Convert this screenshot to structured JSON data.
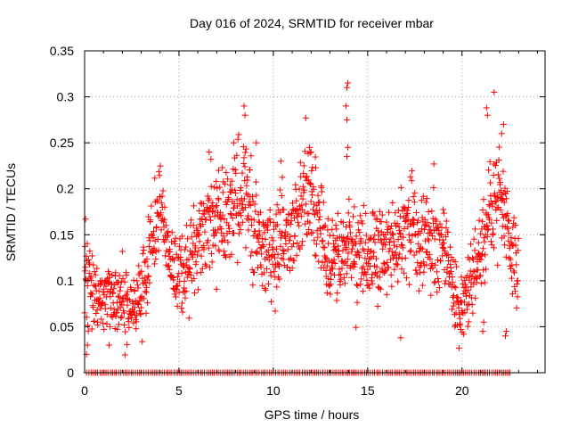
{
  "chart_data": {
    "type": "scatter",
    "title": "Day 016 of 2024, SRMTID for receiver mbar",
    "xlabel": "GPS time / hours",
    "ylabel": "SRMTID / TECUs",
    "xlim": [
      0,
      24.4
    ],
    "ylim": [
      0,
      0.35
    ],
    "xticks": [
      0,
      5,
      10,
      15,
      20
    ],
    "xtick_labels": [
      "0",
      "5",
      "10",
      "15",
      "20"
    ],
    "yticks": [
      0,
      0.05,
      0.1,
      0.15,
      0.2,
      0.25,
      0.3,
      0.35
    ],
    "ytick_labels": [
      "0",
      "0.05",
      "0.1",
      "0.15",
      "0.2",
      "0.25",
      "0.3",
      "0.35"
    ],
    "grid": true,
    "marker": "+",
    "color": "#ff0000",
    "series": [
      {
        "name": "SRMTID",
        "trend": [
          {
            "x": 0.0,
            "y": 0.11
          },
          {
            "x": 0.5,
            "y": 0.1
          },
          {
            "x": 1.0,
            "y": 0.085
          },
          {
            "x": 1.5,
            "y": 0.08
          },
          {
            "x": 2.0,
            "y": 0.08
          },
          {
            "x": 2.5,
            "y": 0.07
          },
          {
            "x": 3.0,
            "y": 0.09
          },
          {
            "x": 3.5,
            "y": 0.13
          },
          {
            "x": 4.0,
            "y": 0.19
          },
          {
            "x": 4.5,
            "y": 0.12
          },
          {
            "x": 5.0,
            "y": 0.11
          },
          {
            "x": 5.5,
            "y": 0.12
          },
          {
            "x": 6.0,
            "y": 0.14
          },
          {
            "x": 6.5,
            "y": 0.17
          },
          {
            "x": 7.0,
            "y": 0.16
          },
          {
            "x": 7.5,
            "y": 0.17
          },
          {
            "x": 8.0,
            "y": 0.18
          },
          {
            "x": 8.5,
            "y": 0.2
          },
          {
            "x": 9.0,
            "y": 0.15
          },
          {
            "x": 9.5,
            "y": 0.14
          },
          {
            "x": 10.0,
            "y": 0.13
          },
          {
            "x": 10.5,
            "y": 0.15
          },
          {
            "x": 11.0,
            "y": 0.14
          },
          {
            "x": 11.5,
            "y": 0.18
          },
          {
            "x": 12.0,
            "y": 0.2
          },
          {
            "x": 12.5,
            "y": 0.15
          },
          {
            "x": 13.0,
            "y": 0.13
          },
          {
            "x": 13.5,
            "y": 0.12
          },
          {
            "x": 14.0,
            "y": 0.14
          },
          {
            "x": 14.5,
            "y": 0.13
          },
          {
            "x": 15.0,
            "y": 0.12
          },
          {
            "x": 15.5,
            "y": 0.13
          },
          {
            "x": 16.0,
            "y": 0.13
          },
          {
            "x": 16.5,
            "y": 0.14
          },
          {
            "x": 17.0,
            "y": 0.16
          },
          {
            "x": 17.5,
            "y": 0.16
          },
          {
            "x": 18.0,
            "y": 0.15
          },
          {
            "x": 18.5,
            "y": 0.14
          },
          {
            "x": 19.0,
            "y": 0.14
          },
          {
            "x": 19.5,
            "y": 0.1
          },
          {
            "x": 20.0,
            "y": 0.07
          },
          {
            "x": 20.5,
            "y": 0.1
          },
          {
            "x": 21.0,
            "y": 0.13
          },
          {
            "x": 21.5,
            "y": 0.17
          },
          {
            "x": 22.0,
            "y": 0.19
          },
          {
            "x": 22.5,
            "y": 0.15
          },
          {
            "x": 23.0,
            "y": 0.1
          }
        ],
        "outliers": [
          {
            "x": 0.05,
            "y": 0.167
          },
          {
            "x": 0.1,
            "y": 0.02
          },
          {
            "x": 0.15,
            "y": 0.03
          },
          {
            "x": 1.3,
            "y": 0.03
          },
          {
            "x": 8.45,
            "y": 0.29
          },
          {
            "x": 8.5,
            "y": 0.28
          },
          {
            "x": 9.1,
            "y": 0.25
          },
          {
            "x": 10.1,
            "y": 0.067
          },
          {
            "x": 13.95,
            "y": 0.315
          },
          {
            "x": 13.9,
            "y": 0.31
          },
          {
            "x": 13.85,
            "y": 0.29
          },
          {
            "x": 13.9,
            "y": 0.275
          },
          {
            "x": 13.95,
            "y": 0.245
          },
          {
            "x": 13.9,
            "y": 0.235
          },
          {
            "x": 16.75,
            "y": 0.038
          },
          {
            "x": 21.15,
            "y": 0.055
          },
          {
            "x": 21.1,
            "y": 0.045
          },
          {
            "x": 21.7,
            "y": 0.305
          },
          {
            "x": 21.3,
            "y": 0.288
          },
          {
            "x": 21.35,
            "y": 0.28
          },
          {
            "x": 22.2,
            "y": 0.27
          },
          {
            "x": 22.1,
            "y": 0.26
          },
          {
            "x": 22.3,
            "y": 0.04
          },
          {
            "x": 22.35,
            "y": 0.045
          },
          {
            "x": 6.6,
            "y": 0.24
          },
          {
            "x": 7.1,
            "y": 0.22
          },
          {
            "x": 7.9,
            "y": 0.25
          },
          {
            "x": 10.4,
            "y": 0.23
          },
          {
            "x": 12.0,
            "y": 0.24
          }
        ],
        "zero_band": {
          "y": 0.0,
          "x_start": 0.1,
          "x_end": 22.6
        }
      }
    ]
  }
}
